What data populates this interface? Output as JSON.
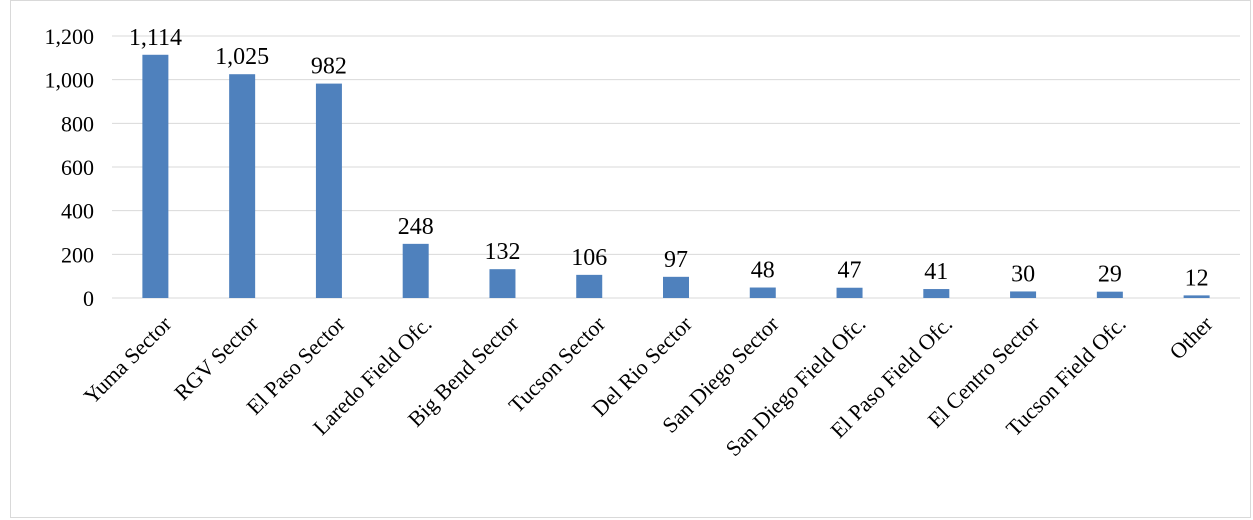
{
  "chart_data": {
    "type": "bar",
    "title": "",
    "xlabel": "",
    "ylabel": "",
    "categories": [
      "Yuma Sector",
      "RGV Sector",
      "El Paso Sector",
      "Laredo Field Ofc.",
      "Big Bend Sector",
      "Tucson Sector",
      "Del Rio Sector",
      "San Diego Sector",
      "San Diego Field Ofc.",
      "El Paso Field Ofc.",
      "El Centro Sector",
      "Tucson Field Ofc.",
      "Other"
    ],
    "values": [
      1114,
      1025,
      982,
      248,
      132,
      106,
      97,
      48,
      47,
      41,
      30,
      29,
      12
    ],
    "data_labels": [
      "1,114",
      "1,025",
      "982",
      "248",
      "132",
      "106",
      "97",
      "48",
      "47",
      "41",
      "30",
      "29",
      "12"
    ],
    "ylim": [
      0,
      1200
    ],
    "yticks": [
      0,
      200,
      400,
      600,
      800,
      1000,
      1200
    ],
    "ytick_labels": [
      "0",
      "200",
      "400",
      "600",
      "800",
      "1,000",
      "1,200"
    ],
    "grid": true,
    "legend": "none",
    "bar_color": "#4f81bd",
    "grid_color": "#d9d9d9"
  }
}
